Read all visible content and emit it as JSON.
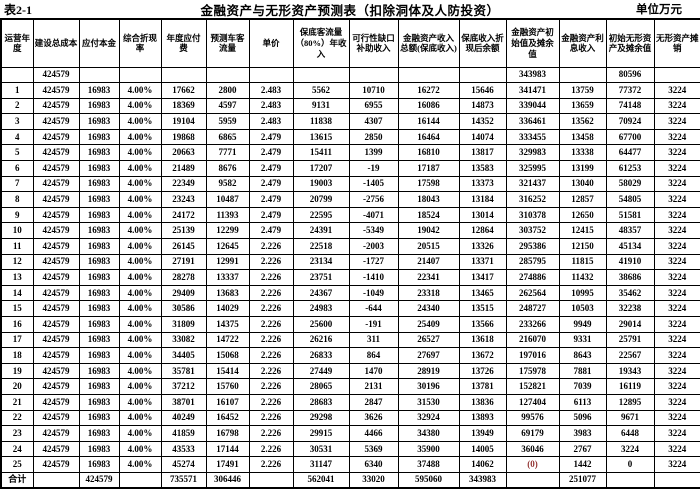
{
  "page": {
    "table_label": "表2-1",
    "title": "金融资产与无形资产预测表（扣除洞体及人防投资）",
    "unit_label": "单位万元"
  },
  "table": {
    "columns": [
      "运营年度",
      "建设总成本",
      "应付本金",
      "综合折现率",
      "年度应付费",
      "预测车客流量",
      "单价",
      "保底客流量（80%）年收入",
      "可行性缺口补助收入",
      "金融资产收入总额(保底收入)",
      "保底收入折现后余额",
      "金融资产初始值及摊余值",
      "金融资产利息收入",
      "初始无形资产及摊余值",
      "无形资产摊销"
    ],
    "rows": [
      [
        "",
        "424579",
        "",
        "",
        "",
        "",
        "",
        "",
        "",
        "",
        "",
        "343983",
        "",
        "80596",
        ""
      ],
      [
        "1",
        "424579",
        "16983",
        "4.00%",
        "17662",
        "2800",
        "2.483",
        "5562",
        "10710",
        "16272",
        "15646",
        "341471",
        "13759",
        "77372",
        "3224"
      ],
      [
        "2",
        "424579",
        "16983",
        "4.00%",
        "18369",
        "4597",
        "2.483",
        "9131",
        "6955",
        "16086",
        "14873",
        "339044",
        "13659",
        "74148",
        "3224"
      ],
      [
        "3",
        "424579",
        "16983",
        "4.00%",
        "19104",
        "5959",
        "2.483",
        "11838",
        "4307",
        "16144",
        "14352",
        "336461",
        "13562",
        "70924",
        "3224"
      ],
      [
        "4",
        "424579",
        "16983",
        "4.00%",
        "19868",
        "6865",
        "2.479",
        "13615",
        "2850",
        "16464",
        "14074",
        "333455",
        "13458",
        "67700",
        "3224"
      ],
      [
        "5",
        "424579",
        "16983",
        "4.00%",
        "20663",
        "7771",
        "2.479",
        "15411",
        "1399",
        "16810",
        "13817",
        "329983",
        "13338",
        "64477",
        "3224"
      ],
      [
        "6",
        "424579",
        "16983",
        "4.00%",
        "21489",
        "8676",
        "2.479",
        "17207",
        "-19",
        "17187",
        "13583",
        "325995",
        "13199",
        "61253",
        "3224"
      ],
      [
        "7",
        "424579",
        "16983",
        "4.00%",
        "22349",
        "9582",
        "2.479",
        "19003",
        "-1405",
        "17598",
        "13373",
        "321437",
        "13040",
        "58029",
        "3224"
      ],
      [
        "8",
        "424579",
        "16983",
        "4.00%",
        "23243",
        "10487",
        "2.479",
        "20799",
        "-2756",
        "18043",
        "13184",
        "316252",
        "12857",
        "54805",
        "3224"
      ],
      [
        "9",
        "424579",
        "16983",
        "4.00%",
        "24172",
        "11393",
        "2.479",
        "22595",
        "-4071",
        "18524",
        "13014",
        "310378",
        "12650",
        "51581",
        "3224"
      ],
      [
        "10",
        "424579",
        "16983",
        "4.00%",
        "25139",
        "12299",
        "2.479",
        "24391",
        "-5349",
        "19042",
        "12864",
        "303752",
        "12415",
        "48357",
        "3224"
      ],
      [
        "11",
        "424579",
        "16983",
        "4.00%",
        "26145",
        "12645",
        "2.226",
        "22518",
        "-2003",
        "20515",
        "13326",
        "295386",
        "12150",
        "45134",
        "3224"
      ],
      [
        "12",
        "424579",
        "16983",
        "4.00%",
        "27191",
        "12991",
        "2.226",
        "23134",
        "-1727",
        "21407",
        "13371",
        "285795",
        "11815",
        "41910",
        "3224"
      ],
      [
        "13",
        "424579",
        "16983",
        "4.00%",
        "28278",
        "13337",
        "2.226",
        "23751",
        "-1410",
        "22341",
        "13417",
        "274886",
        "11432",
        "38686",
        "3224"
      ],
      [
        "14",
        "424579",
        "16983",
        "4.00%",
        "29409",
        "13683",
        "2.226",
        "24367",
        "-1049",
        "23318",
        "13465",
        "262564",
        "10995",
        "35462",
        "3224"
      ],
      [
        "15",
        "424579",
        "16983",
        "4.00%",
        "30586",
        "14029",
        "2.226",
        "24983",
        "-644",
        "24340",
        "13515",
        "248727",
        "10503",
        "32238",
        "3224"
      ],
      [
        "16",
        "424579",
        "16983",
        "4.00%",
        "31809",
        "14375",
        "2.226",
        "25600",
        "-191",
        "25409",
        "13566",
        "233266",
        "9949",
        "29014",
        "3224"
      ],
      [
        "17",
        "424579",
        "16983",
        "4.00%",
        "33082",
        "14722",
        "2.226",
        "26216",
        "311",
        "26527",
        "13618",
        "216070",
        "9331",
        "25791",
        "3224"
      ],
      [
        "18",
        "424579",
        "16983",
        "4.00%",
        "34405",
        "15068",
        "2.226",
        "26833",
        "864",
        "27697",
        "13672",
        "197016",
        "8643",
        "22567",
        "3224"
      ],
      [
        "19",
        "424579",
        "16983",
        "4.00%",
        "35781",
        "15414",
        "2.226",
        "27449",
        "1470",
        "28919",
        "13726",
        "175978",
        "7881",
        "19343",
        "3224"
      ],
      [
        "20",
        "424579",
        "16983",
        "4.00%",
        "37212",
        "15760",
        "2.226",
        "28065",
        "2131",
        "30196",
        "13781",
        "152821",
        "7039",
        "16119",
        "3224"
      ],
      [
        "21",
        "424579",
        "16983",
        "4.00%",
        "38701",
        "16107",
        "2.226",
        "28683",
        "2847",
        "31530",
        "13836",
        "127404",
        "6113",
        "12895",
        "3224"
      ],
      [
        "22",
        "424579",
        "16983",
        "4.00%",
        "40249",
        "16452",
        "2.226",
        "29298",
        "3626",
        "32924",
        "13893",
        "99576",
        "5096",
        "9671",
        "3224"
      ],
      [
        "23",
        "424579",
        "16983",
        "4.00%",
        "41859",
        "16798",
        "2.226",
        "29915",
        "4466",
        "34380",
        "13949",
        "69179",
        "3983",
        "6448",
        "3224"
      ],
      [
        "24",
        "424579",
        "16983",
        "4.00%",
        "43533",
        "17144",
        "2.226",
        "30531",
        "5369",
        "35900",
        "14005",
        "36046",
        "2767",
        "3224",
        "3224"
      ],
      [
        "25",
        "424579",
        "16983",
        "4.00%",
        "45274",
        "17491",
        "2.226",
        "31147",
        "6340",
        "37488",
        "14062",
        "(0)",
        "1442",
        "0",
        "3224"
      ]
    ],
    "total_row": [
      "合计",
      "",
      "424579",
      "",
      "735571",
      "306446",
      "",
      "562041",
      "33020",
      "595060",
      "343983",
      "",
      "251077",
      "",
      ""
    ],
    "highlight": {
      "text": "(0)",
      "color": "#943634"
    }
  },
  "colors": {
    "text": "#000000",
    "border": "#000000",
    "background": "#ffffff",
    "negative_value_red": "#943634"
  }
}
